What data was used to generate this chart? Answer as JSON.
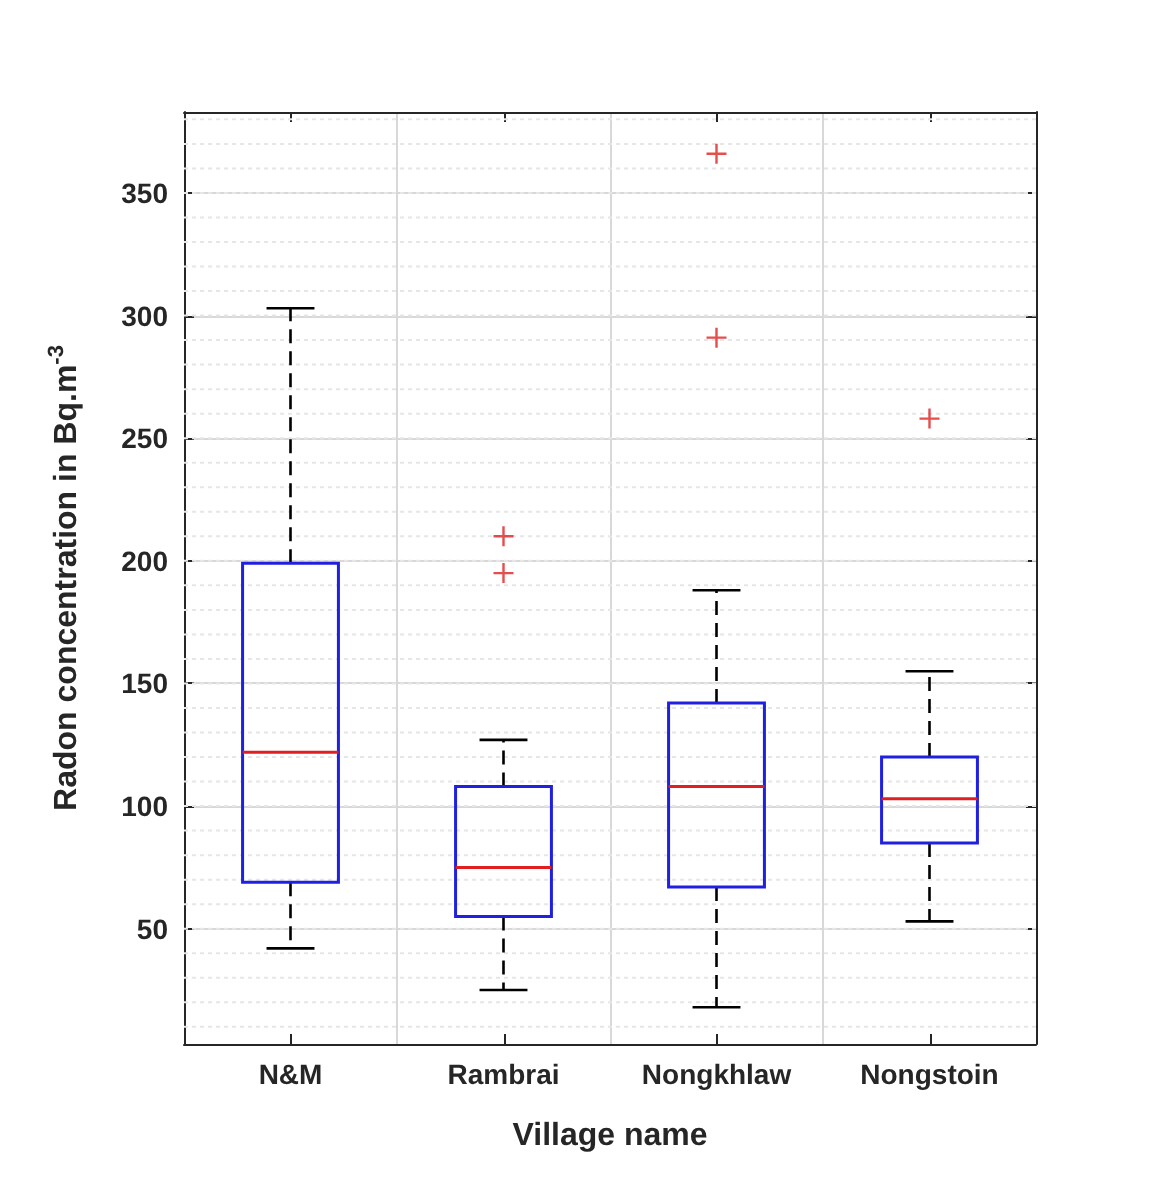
{
  "chart_data": {
    "type": "box",
    "xlabel": "Village name",
    "ylabel": "Radon concentration in Bq.m$^{-3}$",
    "categories": [
      "N&M",
      "Rambrai",
      "Nongkhlaw",
      "Nongstoin"
    ],
    "boxes": [
      {
        "low": 42,
        "q1": 69,
        "median": 122,
        "q3": 199,
        "high": 303
      },
      {
        "low": 25,
        "q1": 55,
        "median": 75,
        "q3": 108,
        "high": 127,
        "outliers": [
          195,
          210
        ]
      },
      {
        "low": 18,
        "q1": 67,
        "median": 108,
        "q3": 142,
        "high": 188,
        "outliers": [
          291,
          366
        ]
      },
      {
        "low": 53,
        "q1": 85,
        "median": 103,
        "q3": 120,
        "high": 155,
        "outliers": [
          258
        ]
      }
    ],
    "ylim": [
      3,
      383
    ],
    "yticks": [
      50,
      100,
      150,
      200,
      250,
      300,
      350
    ],
    "grid": true
  }
}
